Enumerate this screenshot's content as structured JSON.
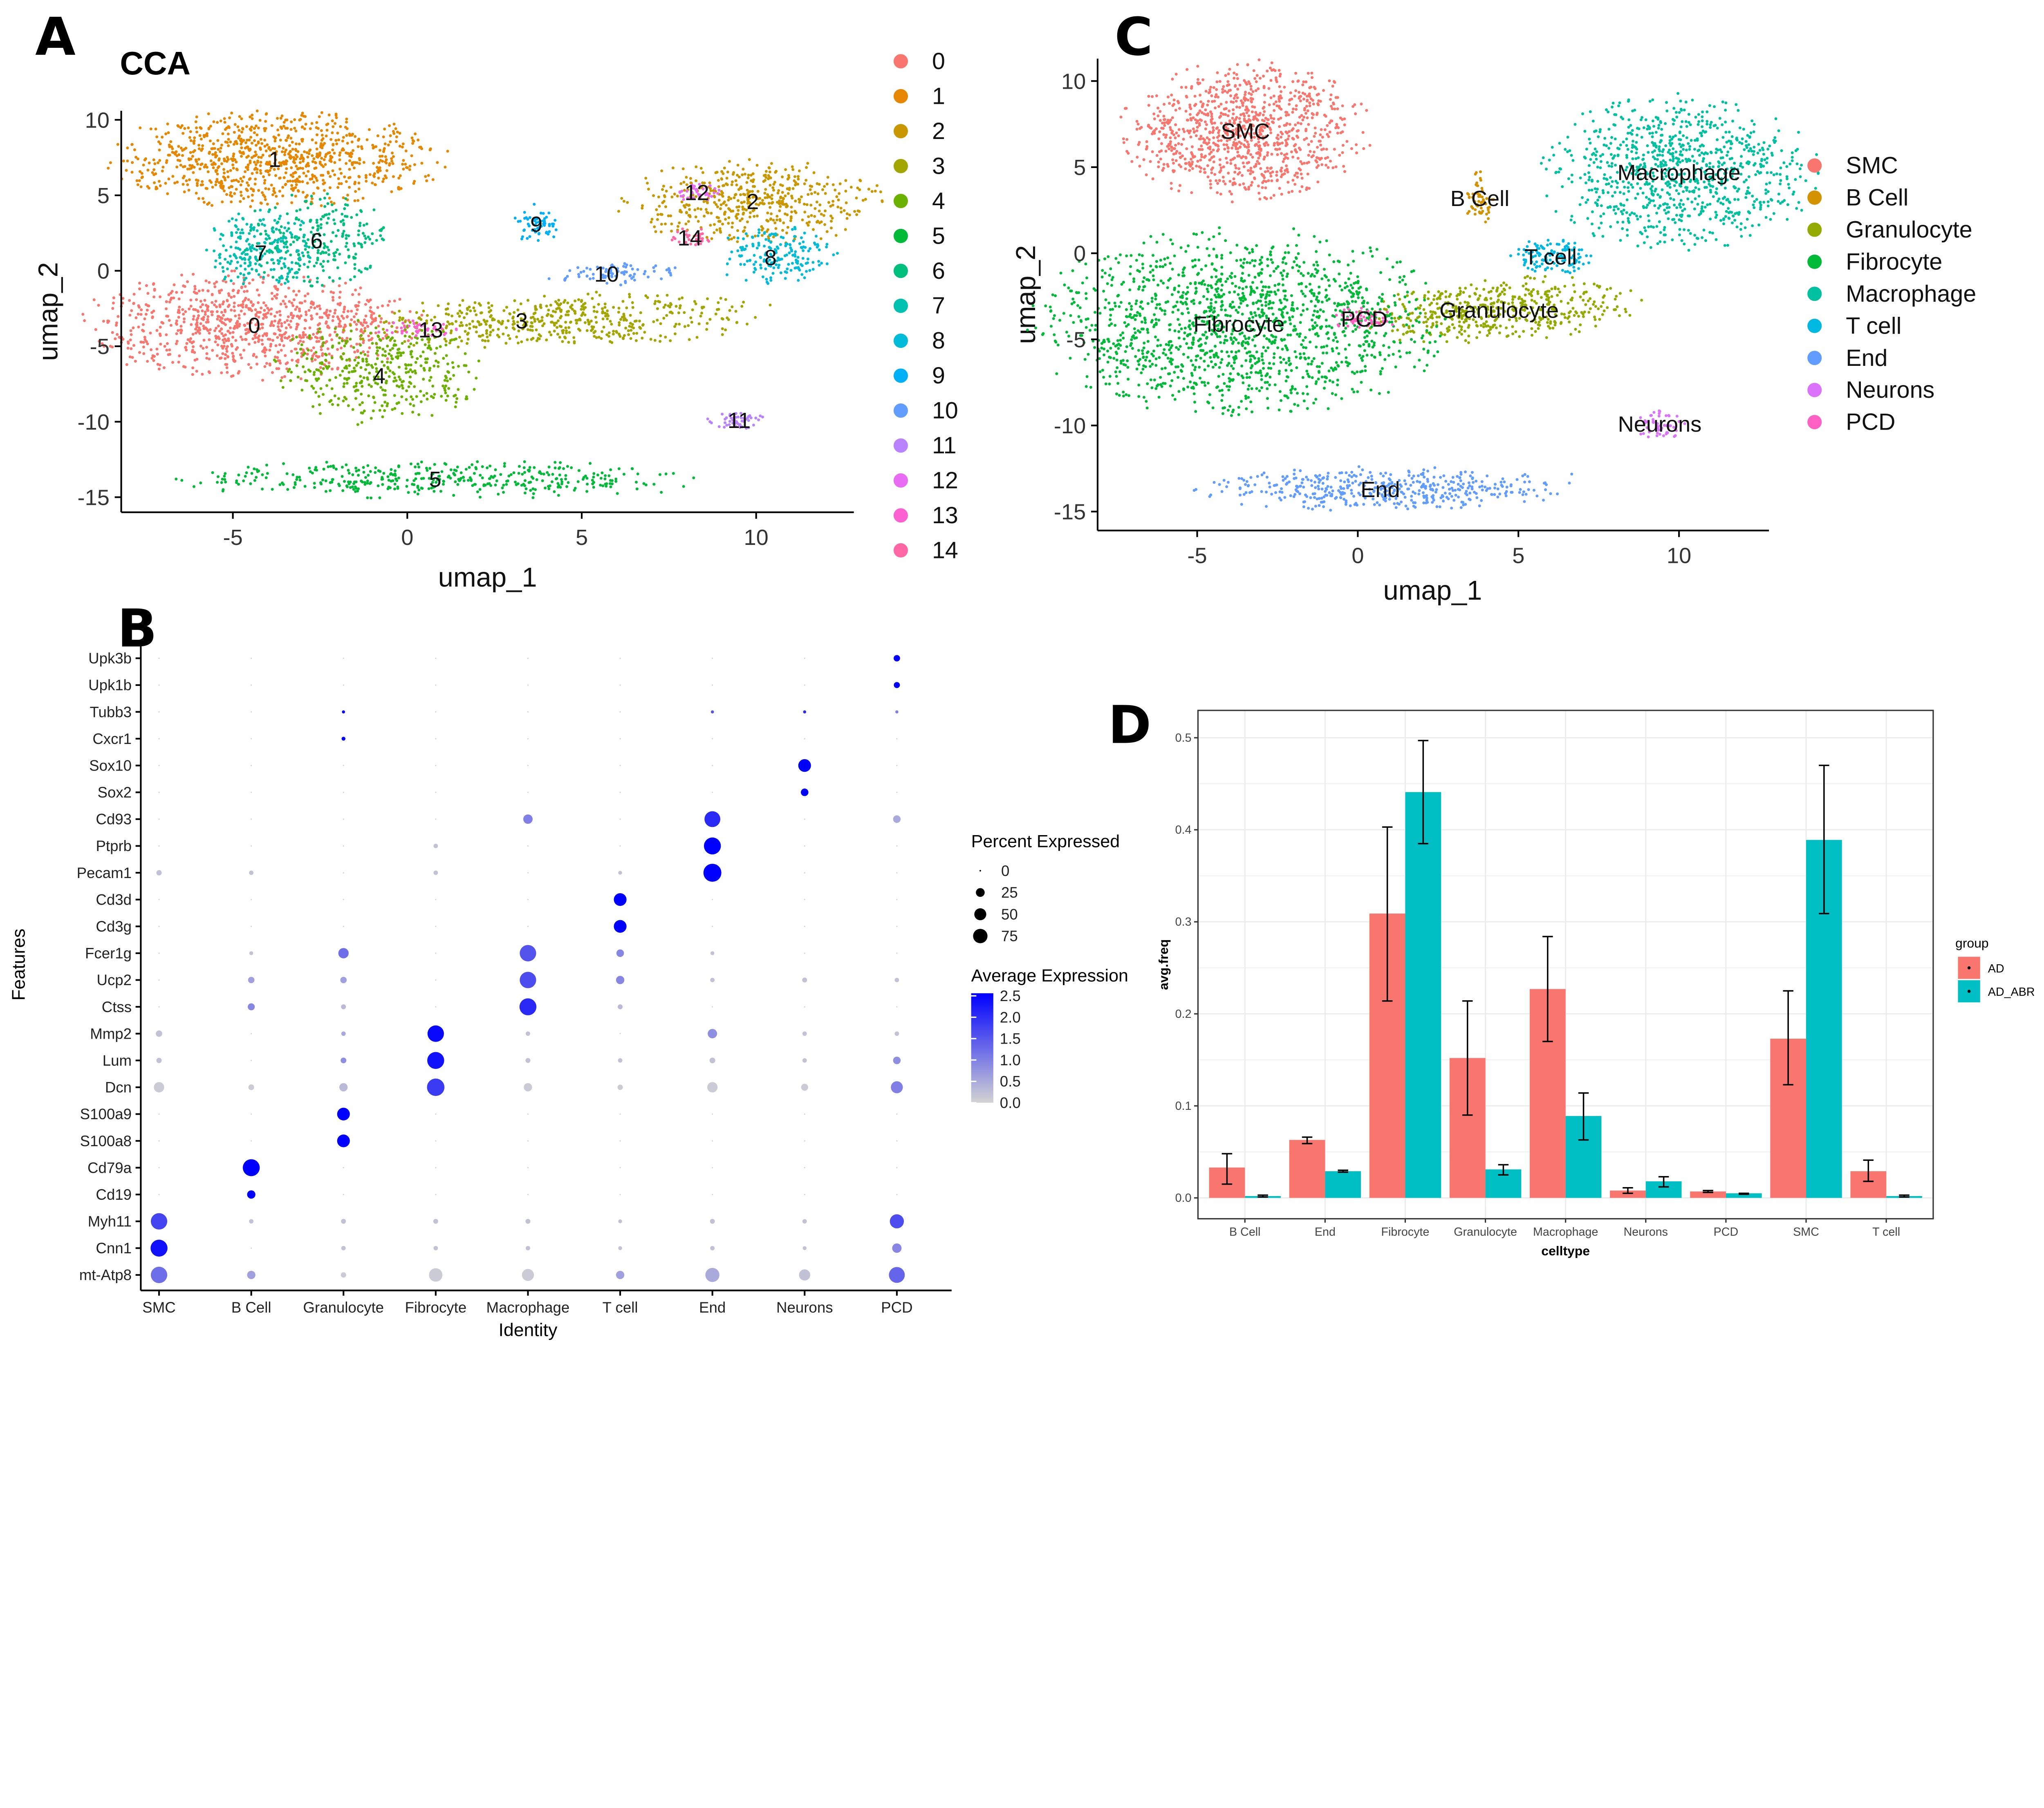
{
  "panels": {
    "a": {
      "letter": "A",
      "title": "CCA",
      "xlabel": "umap_1",
      "ylabel": "umap_2"
    },
    "b": {
      "letter": "B",
      "xlabel": "Identity",
      "ylabel": "Features",
      "size_legend_title": "Percent Expressed",
      "color_legend_title": "Average Expression"
    },
    "c": {
      "letter": "C",
      "xlabel": "umap_1",
      "ylabel": "umap_2"
    },
    "d": {
      "letter": "D",
      "xlabel": "celltype",
      "ylabel": "avg.freq",
      "legend_title": "group"
    }
  },
  "chart_data": [
    {
      "id": "A",
      "type": "scatter",
      "title": "CCA",
      "xlabel": "umap_1",
      "ylabel": "umap_2",
      "xticks": [
        -5,
        0,
        5,
        10
      ],
      "yticks": [
        10,
        5,
        0,
        -5,
        -10,
        -15
      ],
      "xlim": [
        -8.2,
        12.8
      ],
      "ylim": [
        -16,
        10.6
      ],
      "legend_placement": "right",
      "clusters": [
        {
          "name": "0",
          "color": "#F8766D",
          "center": [
            -4.5,
            -3.6
          ]
        },
        {
          "name": "1",
          "color": "#E58700",
          "center": [
            -3.8,
            7.4
          ]
        },
        {
          "name": "2",
          "color": "#C99800",
          "center": [
            9.9,
            4.6
          ]
        },
        {
          "name": "3",
          "color": "#A3A500",
          "center": [
            4.4,
            -3.3
          ]
        },
        {
          "name": "4",
          "color": "#6BB100",
          "center": [
            -0.8,
            -6.6
          ]
        },
        {
          "name": "5",
          "color": "#00BA38",
          "center": [
            0.8,
            -13.8
          ]
        },
        {
          "name": "6",
          "color": "#00BF7D",
          "center": [
            -2.6,
            2.0
          ]
        },
        {
          "name": "7",
          "color": "#00C0AF",
          "center": [
            -4.2,
            1.2
          ]
        },
        {
          "name": "8",
          "color": "#00BCD8",
          "center": [
            10.6,
            0.9
          ]
        },
        {
          "name": "9",
          "color": "#00B0F6",
          "center": [
            3.7,
            3.1
          ]
        },
        {
          "name": "10",
          "color": "#619CFF",
          "center": [
            5.9,
            -0.2
          ]
        },
        {
          "name": "11",
          "color": "#B983FF",
          "center": [
            9.4,
            -9.9
          ]
        },
        {
          "name": "12",
          "color": "#E76BF3",
          "center": [
            8.3,
            5.2
          ]
        },
        {
          "name": "13",
          "color": "#FD61D1",
          "center": [
            0.3,
            -3.9
          ]
        },
        {
          "name": "14",
          "color": "#FF67A4",
          "center": [
            8.1,
            2.2
          ]
        }
      ]
    },
    {
      "id": "B",
      "type": "dot",
      "xlabel": "Identity",
      "ylabel": "Features",
      "identities": [
        "SMC",
        "B Cell",
        "Granulocyte",
        "Fibrocyte",
        "Macrophage",
        "T cell",
        "End",
        "Neurons",
        "PCD"
      ],
      "features": [
        "Upk3b",
        "Upk1b",
        "Tubb3",
        "Cxcr1",
        "Sox10",
        "Sox2",
        "Cd93",
        "Ptprb",
        "Pecam1",
        "Cd3d",
        "Cd3g",
        "Fcer1g",
        "Ucp2",
        "Ctss",
        "Mmp2",
        "Lum",
        "Dcn",
        "S100a9",
        "S100a8",
        "Cd79a",
        "Cd19",
        "Myh11",
        "Cnn1",
        "mt-Atp8"
      ],
      "percent_expressed": [
        [
          0,
          0,
          0,
          0,
          0,
          0,
          0,
          0,
          8
        ],
        [
          0,
          0,
          0,
          0,
          0,
          0,
          0,
          0,
          7
        ],
        [
          0,
          0,
          1,
          0,
          0,
          0,
          1,
          1,
          1
        ],
        [
          0,
          0,
          2,
          0,
          0,
          0,
          0,
          0,
          0
        ],
        [
          0,
          0,
          0,
          0,
          0,
          0,
          0,
          40,
          0
        ],
        [
          0,
          0,
          0,
          0,
          0,
          0,
          0,
          12,
          0
        ],
        [
          0,
          0,
          0,
          0,
          20,
          0,
          65,
          0,
          12
        ],
        [
          0,
          0,
          0,
          3,
          0,
          0,
          75,
          0,
          0
        ],
        [
          5,
          3,
          0,
          3,
          0,
          2,
          85,
          0,
          0
        ],
        [
          0,
          0,
          0,
          0,
          0,
          40,
          0,
          0,
          0
        ],
        [
          0,
          0,
          0,
          0,
          0,
          40,
          0,
          0,
          0
        ],
        [
          0,
          2,
          25,
          0,
          70,
          12,
          2,
          0,
          0
        ],
        [
          0,
          8,
          8,
          0,
          70,
          15,
          3,
          4,
          3
        ],
        [
          0,
          10,
          4,
          0,
          75,
          4,
          0,
          0,
          0
        ],
        [
          8,
          0,
          3,
          70,
          3,
          0,
          20,
          3,
          3
        ],
        [
          5,
          0,
          6,
          75,
          4,
          3,
          6,
          3,
          12
        ],
        [
          25,
          6,
          15,
          80,
          15,
          5,
          25,
          10,
          35
        ],
        [
          0,
          0,
          40,
          0,
          0,
          0,
          0,
          0,
          0
        ],
        [
          0,
          0,
          40,
          0,
          0,
          0,
          0,
          0,
          0
        ],
        [
          0,
          75,
          0,
          0,
          0,
          0,
          0,
          0,
          0
        ],
        [
          0,
          15,
          0,
          0,
          0,
          0,
          0,
          0,
          0
        ],
        [
          70,
          3,
          4,
          4,
          4,
          2,
          4,
          3,
          50
        ],
        [
          75,
          0,
          3,
          3,
          3,
          2,
          3,
          2,
          20
        ],
        [
          70,
          15,
          5,
          45,
          35,
          15,
          50,
          30,
          65
        ]
      ],
      "average_expression": [
        [
          0,
          0,
          0,
          0,
          0,
          0,
          0,
          0,
          2.5
        ],
        [
          0,
          0,
          0,
          0,
          0,
          0,
          0,
          0,
          2.5
        ],
        [
          0,
          0,
          2.5,
          0,
          0,
          0,
          1.5,
          2.0,
          1.0
        ],
        [
          0,
          0,
          2.5,
          0,
          0,
          0,
          0,
          0,
          0
        ],
        [
          0,
          0,
          0,
          0,
          0,
          0,
          0,
          2.5,
          0
        ],
        [
          0,
          0,
          0,
          0,
          0,
          0,
          0,
          2.5,
          0
        ],
        [
          0,
          0,
          0,
          0,
          1.0,
          0,
          2.0,
          0,
          0.5
        ],
        [
          0,
          0,
          0,
          0.2,
          0,
          0,
          2.5,
          0,
          0
        ],
        [
          0.2,
          0.2,
          0,
          0.2,
          0,
          0.2,
          2.5,
          0,
          0
        ],
        [
          0,
          0,
          0,
          0,
          0,
          2.5,
          0,
          0,
          0
        ],
        [
          0,
          0,
          0,
          0,
          0,
          2.5,
          0,
          0,
          0
        ],
        [
          0,
          0.2,
          1.2,
          0,
          1.5,
          0.9,
          0.2,
          0,
          0
        ],
        [
          0,
          0.6,
          0.6,
          0,
          1.6,
          0.9,
          0.2,
          0.2,
          0.2
        ],
        [
          0,
          0.9,
          0.3,
          0,
          2.0,
          0.3,
          0,
          0,
          0
        ],
        [
          0.2,
          0,
          0.5,
          2.4,
          0.2,
          0,
          0.8,
          0.2,
          0.2
        ],
        [
          0.2,
          0,
          0.8,
          2.3,
          0.2,
          0.2,
          0.2,
          0.2,
          0.8
        ],
        [
          0.1,
          0.1,
          0.3,
          1.8,
          0.1,
          0.1,
          0.1,
          0.1,
          1.0
        ],
        [
          0,
          0,
          2.5,
          0,
          0,
          0,
          0,
          0,
          0
        ],
        [
          0,
          0,
          2.5,
          0,
          0,
          0,
          0,
          0,
          0
        ],
        [
          0,
          2.5,
          0,
          0,
          0,
          0,
          0,
          0,
          0
        ],
        [
          0,
          2.5,
          0,
          0,
          0,
          0,
          0,
          0,
          0
        ],
        [
          1.7,
          0.2,
          0.2,
          0.2,
          0.2,
          0.2,
          0.2,
          0.2,
          1.6
        ],
        [
          2.3,
          0,
          0.2,
          0.2,
          0.2,
          0.2,
          0.2,
          0.2,
          0.9
        ],
        [
          1.2,
          0.6,
          0.1,
          0.1,
          0.1,
          0.6,
          0.5,
          0.2,
          1.3
        ]
      ],
      "size_legend": {
        "title": "Percent Expressed",
        "breaks": [
          0,
          25,
          50,
          75
        ]
      },
      "color_legend": {
        "title": "Average Expression",
        "breaks": [
          "2.5",
          "2.0",
          "1.5",
          "1.0",
          "0.5",
          "0.0"
        ],
        "low": "#D3D3D3",
        "high": "#0000FF",
        "range": [
          0,
          2.5
        ]
      }
    },
    {
      "id": "C",
      "type": "scatter",
      "xlabel": "umap_1",
      "ylabel": "umap_2",
      "xticks": [
        -5,
        0,
        5,
        10
      ],
      "yticks": [
        10,
        5,
        0,
        -5,
        -10,
        -15
      ],
      "xlim": [
        -8.1,
        12.8
      ],
      "ylim": [
        -16.1,
        11.3
      ],
      "legend_placement": "right",
      "clusters": [
        {
          "name": "SMC",
          "color": "#F8766D",
          "center": [
            -3.5,
            7.1
          ]
        },
        {
          "name": "B Cell",
          "color": "#D39200",
          "center": [
            3.8,
            3.2
          ]
        },
        {
          "name": "Granulocyte",
          "color": "#93AA00",
          "center": [
            4.4,
            -3.3
          ]
        },
        {
          "name": "Fibrocyte",
          "color": "#00BA38",
          "center": [
            -3.7,
            -4.1
          ]
        },
        {
          "name": "Macrophage",
          "color": "#00C19F",
          "center": [
            10.0,
            4.7
          ]
        },
        {
          "name": "T cell",
          "color": "#00B9E3",
          "center": [
            6.0,
            -0.2
          ]
        },
        {
          "name": "End",
          "color": "#619CFF",
          "center": [
            0.7,
            -13.7
          ]
        },
        {
          "name": "Neurons",
          "color": "#DB72FB",
          "center": [
            9.4,
            -9.9
          ]
        },
        {
          "name": "PCD",
          "color": "#FF61C3",
          "center": [
            0.2,
            -3.8
          ]
        }
      ]
    },
    {
      "id": "D",
      "type": "bar",
      "xlabel": "celltype",
      "ylabel": "avg.freq",
      "categories": [
        "B Cell",
        "End",
        "Fibrocyte",
        "Granulocyte",
        "Macrophage",
        "Neurons",
        "PCD",
        "SMC",
        "T cell"
      ],
      "ylim": [
        -0.02,
        0.53
      ],
      "yticks": [
        "0.0",
        "0.1",
        "0.2",
        "0.3",
        "0.4",
        "0.5"
      ],
      "grid": true,
      "legend_placement": "right",
      "legend_title": "group",
      "series": [
        {
          "name": "AD",
          "color": "#F8766D",
          "values": [
            0.033,
            0.063,
            0.309,
            0.152,
            0.227,
            0.008,
            0.007,
            0.173,
            0.029
          ],
          "error": [
            [
              0.015,
              0.048
            ],
            [
              0.059,
              0.066
            ],
            [
              0.214,
              0.403
            ],
            [
              0.09,
              0.214
            ],
            [
              0.17,
              0.284
            ],
            [
              0.005,
              0.011
            ],
            [
              0.006,
              0.008
            ],
            [
              0.123,
              0.225
            ],
            [
              0.018,
              0.041
            ]
          ]
        },
        {
          "name": "AD_ABR",
          "color": "#00BFC4",
          "values": [
            0.002,
            0.029,
            0.441,
            0.031,
            0.089,
            0.018,
            0.005,
            0.389,
            0.002
          ],
          "error": [
            [
              0.001,
              0.003
            ],
            [
              0.028,
              0.03
            ],
            [
              0.385,
              0.497
            ],
            [
              0.025,
              0.036
            ],
            [
              0.063,
              0.114
            ],
            [
              0.012,
              0.023
            ],
            [
              0.004,
              0.005
            ],
            [
              0.309,
              0.47
            ],
            [
              0.001,
              0.003
            ]
          ]
        }
      ]
    }
  ]
}
